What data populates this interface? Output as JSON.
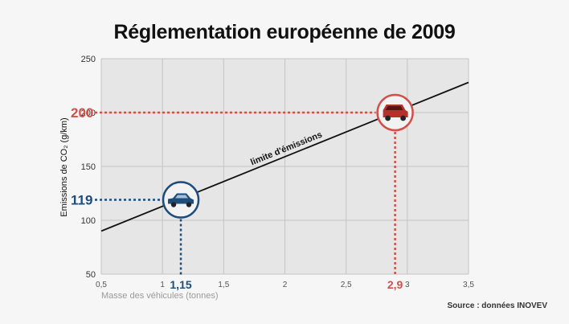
{
  "chart_data": {
    "type": "line",
    "title": "Réglementation européenne de 2009",
    "xlabel": "Masse des véhicules (tonnes)",
    "ylabel": "Emissions de CO₂ (g/km)",
    "xlim": [
      0.5,
      3.5
    ],
    "ylim": [
      50,
      250
    ],
    "xticks": [
      {
        "value": 0.5,
        "label": "0,5"
      },
      {
        "value": 1,
        "label": "1"
      },
      {
        "value": 1.5,
        "label": "1,5"
      },
      {
        "value": 2,
        "label": "2"
      },
      {
        "value": 2.5,
        "label": "2,5"
      },
      {
        "value": 3,
        "label": "3"
      },
      {
        "value": 3.5,
        "label": "3,5"
      }
    ],
    "yticks": [
      {
        "value": 50,
        "label": "50"
      },
      {
        "value": 100,
        "label": "100"
      },
      {
        "value": 150,
        "label": "150"
      },
      {
        "value": 200,
        "label": "200"
      },
      {
        "value": 250,
        "label": "250"
      }
    ],
    "grid": true,
    "series": [
      {
        "name": "limite d'émissions",
        "x": [
          0.5,
          3.5
        ],
        "y": [
          90,
          228
        ],
        "color": "#111111"
      }
    ],
    "annotations": [
      {
        "name": "small-car",
        "x": 1.15,
        "y": 119,
        "x_label": "1,15",
        "y_label": "119",
        "color": "#1e4d7b",
        "icon": "car-icon"
      },
      {
        "name": "suv",
        "x": 2.9,
        "y": 200,
        "x_label": "2,9",
        "y_label": "200",
        "color": "#d0504a",
        "icon": "suv-icon"
      }
    ],
    "source": "Source : données INOVEV"
  }
}
